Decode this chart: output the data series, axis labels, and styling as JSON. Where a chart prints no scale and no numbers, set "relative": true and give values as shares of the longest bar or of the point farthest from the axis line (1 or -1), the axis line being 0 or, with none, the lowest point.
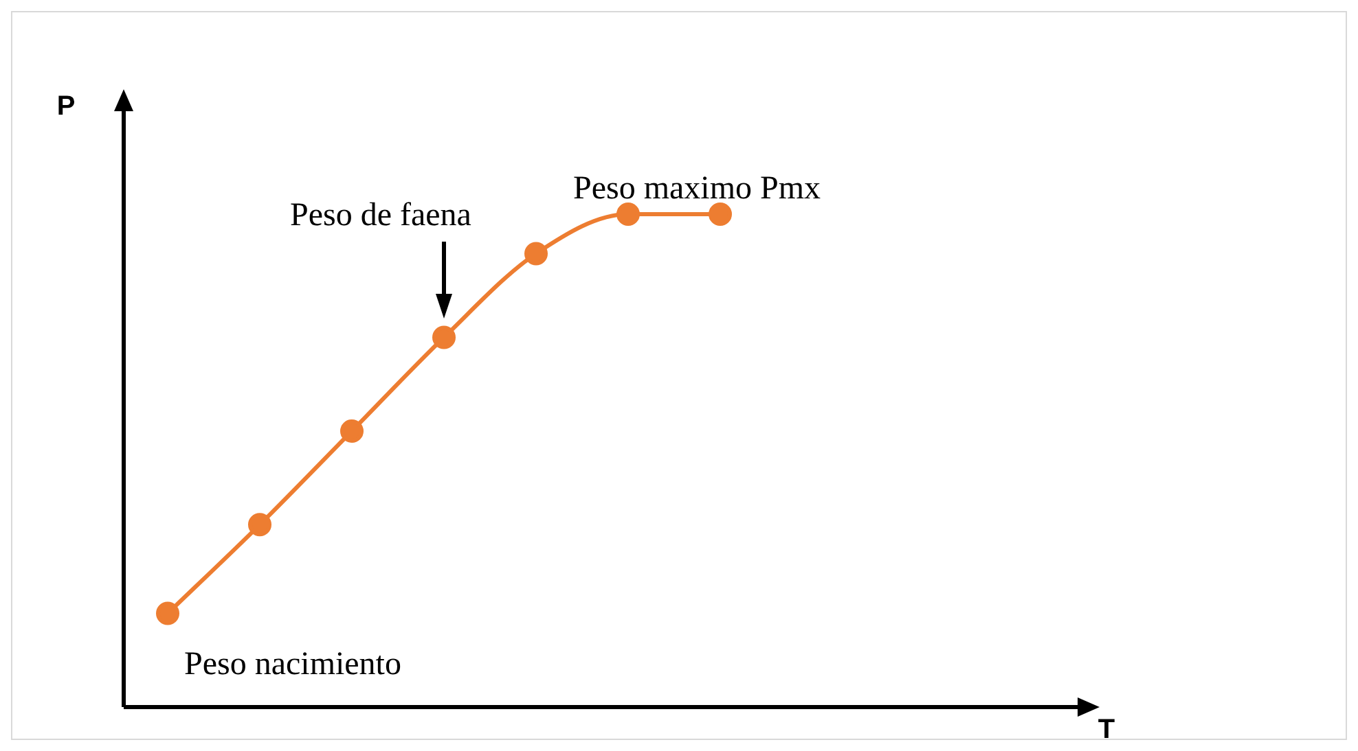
{
  "chart_data": {
    "type": "line",
    "relative": true,
    "ylabel": "P",
    "categories": [
      null,
      null,
      null,
      null,
      null,
      null,
      null
    ],
    "series": [
      {
        "color": "#ed7d31",
        "values": [
          0.19,
          0.37,
          0.56,
          0.75,
          0.92,
          1,
          1
        ]
      }
    ],
    "marker": "circle",
    "line_style": "solid",
    "legend": false,
    "annotations": [
      "Peso nacimiento",
      "Peso de faena",
      "Peso maximo Pmx",
      "T"
    ]
  }
}
